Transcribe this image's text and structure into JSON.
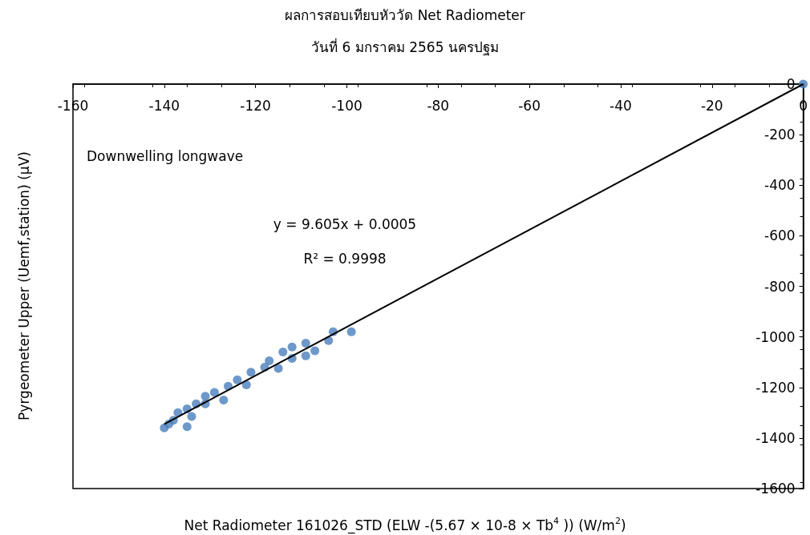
{
  "chart_data": {
    "type": "scatter",
    "title": "ผลการสอบเทียบหัววัด Net Radiometer",
    "subtitle": "วันที่ 6 มกราคม 2565 นครปฐม",
    "xlabel": "Net Radiometer 161026_STD (ELW -(5.67 × 10-8 × Tb$^{4}$ )) (W/m$^{2}$)",
    "ylabel": "Pyrgeometer Upper (Uemf,station) (µV)",
    "annotations": [
      "Downwelling longwave",
      "y = 9.605x + 0.0005",
      "R² = 0.9998"
    ],
    "xlim": [
      -160,
      0
    ],
    "xticks": [
      -160,
      -140,
      -120,
      -100,
      -80,
      -60,
      -40,
      -20,
      0
    ],
    "ylim": [
      -1600,
      0
    ],
    "yticks": [
      -1600,
      -1400,
      -1200,
      -1000,
      -800,
      -600,
      -400,
      -200,
      0
    ],
    "grid": false,
    "marker": "circle",
    "series": [
      {
        "color": "#4a7ebb",
        "x": [
          -140,
          -135,
          -138,
          -137,
          -135,
          -133,
          -131,
          -129,
          -126,
          -124,
          -121,
          -118,
          -117,
          -114,
          -112,
          -109,
          -107,
          -104,
          -103,
          -99,
          -112,
          -109,
          -115,
          -127,
          -134,
          -139,
          -131,
          -122,
          0
        ],
        "values": [
          -1360,
          -1355,
          -1330,
          -1300,
          -1285,
          -1265,
          -1235,
          -1220,
          -1195,
          -1170,
          -1140,
          -1120,
          -1095,
          -1060,
          -1040,
          -1075,
          -1055,
          -1015,
          -980,
          -980,
          -1085,
          -1025,
          -1125,
          -1250,
          -1315,
          -1345,
          -1265,
          -1190,
          0
        ]
      },
      {
        "type": "line",
        "color": "#000000",
        "marker": "none",
        "x": [
          -140,
          0
        ],
        "values": [
          -1345,
          0
        ]
      }
    ]
  }
}
